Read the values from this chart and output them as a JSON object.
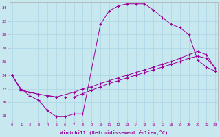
{
  "xlabel": "Windchill (Refroidissement éolien,°C)",
  "background_color": "#c8e8f0",
  "line_color": "#990099",
  "grid_color": "#b0d8e8",
  "xlim": [
    -0.3,
    23.3
  ],
  "ylim": [
    17.3,
    34.8
  ],
  "xticks": [
    0,
    1,
    2,
    3,
    4,
    5,
    6,
    7,
    8,
    9,
    10,
    11,
    12,
    13,
    14,
    15,
    16,
    17,
    18,
    19,
    20,
    21,
    22,
    23
  ],
  "yticks": [
    18,
    20,
    22,
    24,
    26,
    28,
    30,
    32,
    34
  ],
  "line1_x": [
    0,
    1,
    2,
    3,
    4,
    5,
    6,
    7,
    8,
    10,
    11,
    12,
    13,
    14,
    15,
    16,
    17,
    18,
    19,
    20,
    21,
    22,
    23
  ],
  "line1_y": [
    24,
    22,
    21,
    20.3,
    18.8,
    17.9,
    17.9,
    18.3,
    18.3,
    31.5,
    33.5,
    34.2,
    34.5,
    34.5,
    34.5,
    33.6,
    32.5,
    31.5,
    31.0,
    30,
    26.2,
    25.2,
    24.6
  ],
  "line2_x": [
    0,
    1,
    2,
    3,
    4,
    5,
    7,
    8,
    9,
    10,
    11,
    12,
    13,
    14,
    15,
    16,
    17,
    18,
    19,
    20,
    21,
    22,
    23
  ],
  "line2_y": [
    24,
    21.8,
    21.5,
    21.2,
    21.0,
    20.8,
    21.5,
    22.0,
    22.3,
    22.8,
    23.2,
    23.6,
    24.0,
    24.4,
    24.8,
    25.2,
    25.6,
    26.0,
    26.5,
    27.0,
    27.5,
    27.0,
    25.0
  ],
  "line3_x": [
    0,
    1,
    2,
    3,
    4,
    5,
    6,
    7,
    8,
    9,
    10,
    11,
    12,
    13,
    14,
    15,
    16,
    17,
    18,
    19,
    20,
    21,
    22,
    23
  ],
  "line3_y": [
    24,
    21.8,
    21.5,
    21.2,
    21.0,
    20.8,
    20.8,
    20.8,
    21.3,
    21.8,
    22.3,
    22.8,
    23.2,
    23.6,
    24.0,
    24.4,
    24.8,
    25.2,
    25.6,
    26.0,
    26.5,
    26.8,
    26.5,
    25.0
  ]
}
